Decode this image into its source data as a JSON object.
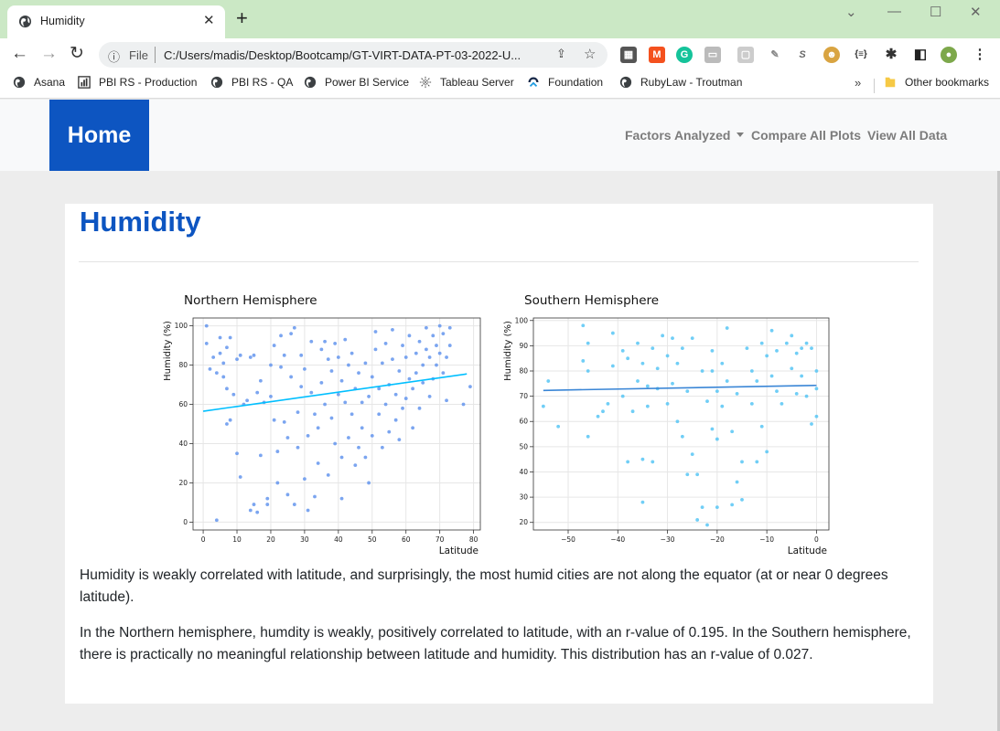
{
  "browser": {
    "tab_title": "Humidity",
    "url_scheme": "File",
    "url": "C:/Users/madis/Desktop/Bootcamp/GT-VIRT-DATA-PT-03-2022-U...",
    "bookmarks": [
      "Asana",
      "PBI RS - Production",
      "PBI RS - QA",
      "Power BI Service",
      "Tableau Server",
      "Foundation",
      "RubyLaw - Troutman"
    ],
    "other_bookmarks": "Other bookmarks",
    "more_glyph": "»"
  },
  "navbar": {
    "brand": "Home",
    "links": [
      "Factors Analyzed",
      "Compare All Plots",
      "View All Data"
    ]
  },
  "page": {
    "title": "Humidity",
    "paragraphs": [
      "Humidity is weakly correlated with latitude, and surprisingly, the most humid cities are not along the equator (at or near 0 degrees latitude).",
      "In the Northern hemisphere, humdity is weakly, positively correlated to latitude, with an r-value of 0.195. In the Southern hemisphere, there is practically no meaningful relationship between latitude and humidity. This distribution has an r-value of 0.027."
    ]
  },
  "chart_data": [
    {
      "type": "scatter",
      "title": "Northern Hemisphere",
      "xlabel": "Latitude",
      "ylabel": "Humidity (%)",
      "xlim": [
        -3,
        82
      ],
      "ylim": [
        -4,
        104
      ],
      "xticks": [
        0,
        10,
        20,
        30,
        40,
        50,
        60,
        70,
        80
      ],
      "yticks": [
        0,
        20,
        40,
        60,
        80,
        100
      ],
      "grid": true,
      "point_color": "#6495ed",
      "regression": {
        "x": [
          0,
          78
        ],
        "y": [
          56.5,
          75.5
        ],
        "color": "#00bfff"
      },
      "points": [
        [
          1,
          100
        ],
        [
          1,
          91
        ],
        [
          2,
          78
        ],
        [
          3,
          84
        ],
        [
          4,
          76
        ],
        [
          5,
          86
        ],
        [
          5,
          94
        ],
        [
          6,
          81
        ],
        [
          6,
          74
        ],
        [
          7,
          68
        ],
        [
          7,
          89
        ],
        [
          7,
          50
        ],
        [
          8,
          52
        ],
        [
          8,
          94
        ],
        [
          9,
          65
        ],
        [
          4,
          1
        ],
        [
          10,
          83
        ],
        [
          11,
          85
        ],
        [
          10,
          35
        ],
        [
          11,
          23
        ],
        [
          12,
          60
        ],
        [
          13,
          62
        ],
        [
          14,
          84
        ],
        [
          14,
          6
        ],
        [
          15,
          85
        ],
        [
          15,
          9
        ],
        [
          16,
          66
        ],
        [
          16,
          5
        ],
        [
          17,
          72
        ],
        [
          17,
          34
        ],
        [
          18,
          61
        ],
        [
          19,
          12
        ],
        [
          19,
          9
        ],
        [
          20,
          64
        ],
        [
          20,
          80
        ],
        [
          21,
          90
        ],
        [
          21,
          52
        ],
        [
          22,
          36
        ],
        [
          22,
          20
        ],
        [
          23,
          79
        ],
        [
          23,
          95
        ],
        [
          24,
          85
        ],
        [
          24,
          51
        ],
        [
          25,
          14
        ],
        [
          25,
          43
        ],
        [
          26,
          74
        ],
        [
          26,
          96
        ],
        [
          27,
          99
        ],
        [
          27,
          9
        ],
        [
          28,
          56
        ],
        [
          28,
          38
        ],
        [
          29,
          69
        ],
        [
          29,
          85
        ],
        [
          30,
          78
        ],
        [
          30,
          22
        ],
        [
          31,
          44
        ],
        [
          31,
          6
        ],
        [
          32,
          92
        ],
        [
          32,
          66
        ],
        [
          33,
          55
        ],
        [
          33,
          13
        ],
        [
          34,
          30
        ],
        [
          34,
          48
        ],
        [
          35,
          88
        ],
        [
          35,
          71
        ],
        [
          36,
          60
        ],
        [
          36,
          92
        ],
        [
          37,
          24
        ],
        [
          37,
          83
        ],
        [
          38,
          53
        ],
        [
          38,
          77
        ],
        [
          39,
          40
        ],
        [
          39,
          91
        ],
        [
          40,
          65
        ],
        [
          40,
          84
        ],
        [
          41,
          12
        ],
        [
          41,
          33
        ],
        [
          41,
          72
        ],
        [
          42,
          61
        ],
        [
          42,
          93
        ],
        [
          43,
          43
        ],
        [
          43,
          80
        ],
        [
          44,
          86
        ],
        [
          44,
          55
        ],
        [
          45,
          68
        ],
        [
          45,
          29
        ],
        [
          46,
          38
        ],
        [
          46,
          76
        ],
        [
          47,
          61
        ],
        [
          47,
          48
        ],
        [
          48,
          81
        ],
        [
          48,
          33
        ],
        [
          49,
          20
        ],
        [
          49,
          64
        ],
        [
          50,
          74
        ],
        [
          50,
          44
        ],
        [
          51,
          88
        ],
        [
          51,
          97
        ],
        [
          52,
          55
        ],
        [
          52,
          68
        ],
        [
          53,
          81
        ],
        [
          53,
          38
        ],
        [
          54,
          60
        ],
        [
          54,
          91
        ],
        [
          55,
          46
        ],
        [
          55,
          70
        ],
        [
          56,
          83
        ],
        [
          56,
          98
        ],
        [
          57,
          52
        ],
        [
          57,
          65
        ],
        [
          58,
          77
        ],
        [
          58,
          42
        ],
        [
          59,
          90
        ],
        [
          59,
          58
        ],
        [
          60,
          63
        ],
        [
          60,
          84
        ],
        [
          61,
          95
        ],
        [
          61,
          73
        ],
        [
          62,
          48
        ],
        [
          62,
          68
        ],
        [
          63,
          86
        ],
        [
          63,
          76
        ],
        [
          64,
          58
        ],
        [
          64,
          92
        ],
        [
          65,
          80
        ],
        [
          65,
          71
        ],
        [
          66,
          99
        ],
        [
          66,
          88
        ],
        [
          67,
          64
        ],
        [
          67,
          84
        ],
        [
          68,
          95
        ],
        [
          68,
          73
        ],
        [
          69,
          90
        ],
        [
          69,
          80
        ],
        [
          70,
          100
        ],
        [
          70,
          86
        ],
        [
          71,
          76
        ],
        [
          71,
          96
        ],
        [
          72,
          84
        ],
        [
          72,
          62
        ],
        [
          73,
          99
        ],
        [
          73,
          90
        ],
        [
          77,
          60
        ],
        [
          79,
          69
        ]
      ]
    },
    {
      "type": "scatter",
      "title": "Southern Hemisphere",
      "xlabel": "Latitude",
      "ylabel": "Humidity (%)",
      "xlim": [
        -57,
        2.5
      ],
      "ylim": [
        17,
        101
      ],
      "xticks": [
        -50,
        -40,
        -30,
        -20,
        -10,
        0
      ],
      "yticks": [
        20,
        30,
        40,
        50,
        60,
        70,
        80,
        90,
        100
      ],
      "grid": true,
      "point_color": "#57c5f5",
      "regression": {
        "x": [
          -55,
          0
        ],
        "y": [
          72.3,
          74.3
        ],
        "color": "#3a86d6"
      },
      "points": [
        [
          -55,
          66
        ],
        [
          -54,
          76
        ],
        [
          -52,
          58
        ],
        [
          -47,
          98
        ],
        [
          -47,
          84
        ],
        [
          -46,
          91
        ],
        [
          -46,
          80
        ],
        [
          -46,
          54
        ],
        [
          -44,
          62
        ],
        [
          -43,
          64
        ],
        [
          -42,
          67
        ],
        [
          -41,
          82
        ],
        [
          -41,
          95
        ],
        [
          -39,
          70
        ],
        [
          -39,
          88
        ],
        [
          -38,
          44
        ],
        [
          -38,
          85
        ],
        [
          -37,
          64
        ],
        [
          -36,
          76
        ],
        [
          -36,
          91
        ],
        [
          -35,
          45
        ],
        [
          -35,
          28
        ],
        [
          -35,
          83
        ],
        [
          -34,
          74
        ],
        [
          -34,
          66
        ],
        [
          -33,
          44
        ],
        [
          -33,
          89
        ],
        [
          -32,
          73
        ],
        [
          -32,
          81
        ],
        [
          -31,
          94
        ],
        [
          -30,
          86
        ],
        [
          -30,
          67
        ],
        [
          -29,
          93
        ],
        [
          -29,
          75
        ],
        [
          -28,
          60
        ],
        [
          -28,
          83
        ],
        [
          -27,
          54
        ],
        [
          -27,
          89
        ],
        [
          -26,
          39
        ],
        [
          -26,
          72
        ],
        [
          -25,
          93
        ],
        [
          -25,
          47
        ],
        [
          -24,
          21
        ],
        [
          -24,
          39
        ],
        [
          -23,
          26
        ],
        [
          -23,
          80
        ],
        [
          -22,
          19
        ],
        [
          -22,
          68
        ],
        [
          -21,
          88
        ],
        [
          -21,
          80
        ],
        [
          -21,
          57
        ],
        [
          -20,
          72
        ],
        [
          -20,
          53
        ],
        [
          -20,
          26
        ],
        [
          -19,
          83
        ],
        [
          -19,
          66
        ],
        [
          -18,
          76
        ],
        [
          -18,
          97
        ],
        [
          -17,
          27
        ],
        [
          -17,
          56
        ],
        [
          -16,
          36
        ],
        [
          -16,
          71
        ],
        [
          -15,
          44
        ],
        [
          -15,
          29
        ],
        [
          -14,
          89
        ],
        [
          -13,
          67
        ],
        [
          -13,
          80
        ],
        [
          -12,
          44
        ],
        [
          -12,
          76
        ],
        [
          -11,
          91
        ],
        [
          -11,
          58
        ],
        [
          -10,
          86
        ],
        [
          -10,
          48
        ],
        [
          -9,
          96
        ],
        [
          -9,
          78
        ],
        [
          -8,
          72
        ],
        [
          -8,
          88
        ],
        [
          -7,
          67
        ],
        [
          -6,
          91
        ],
        [
          -5,
          81
        ],
        [
          -5,
          94
        ],
        [
          -4,
          71
        ],
        [
          -4,
          87
        ],
        [
          -3,
          89
        ],
        [
          -3,
          78
        ],
        [
          -2,
          70
        ],
        [
          -2,
          91
        ],
        [
          -1,
          59
        ],
        [
          -1,
          89
        ],
        [
          0,
          80
        ],
        [
          0,
          73
        ],
        [
          0,
          62
        ]
      ]
    }
  ]
}
